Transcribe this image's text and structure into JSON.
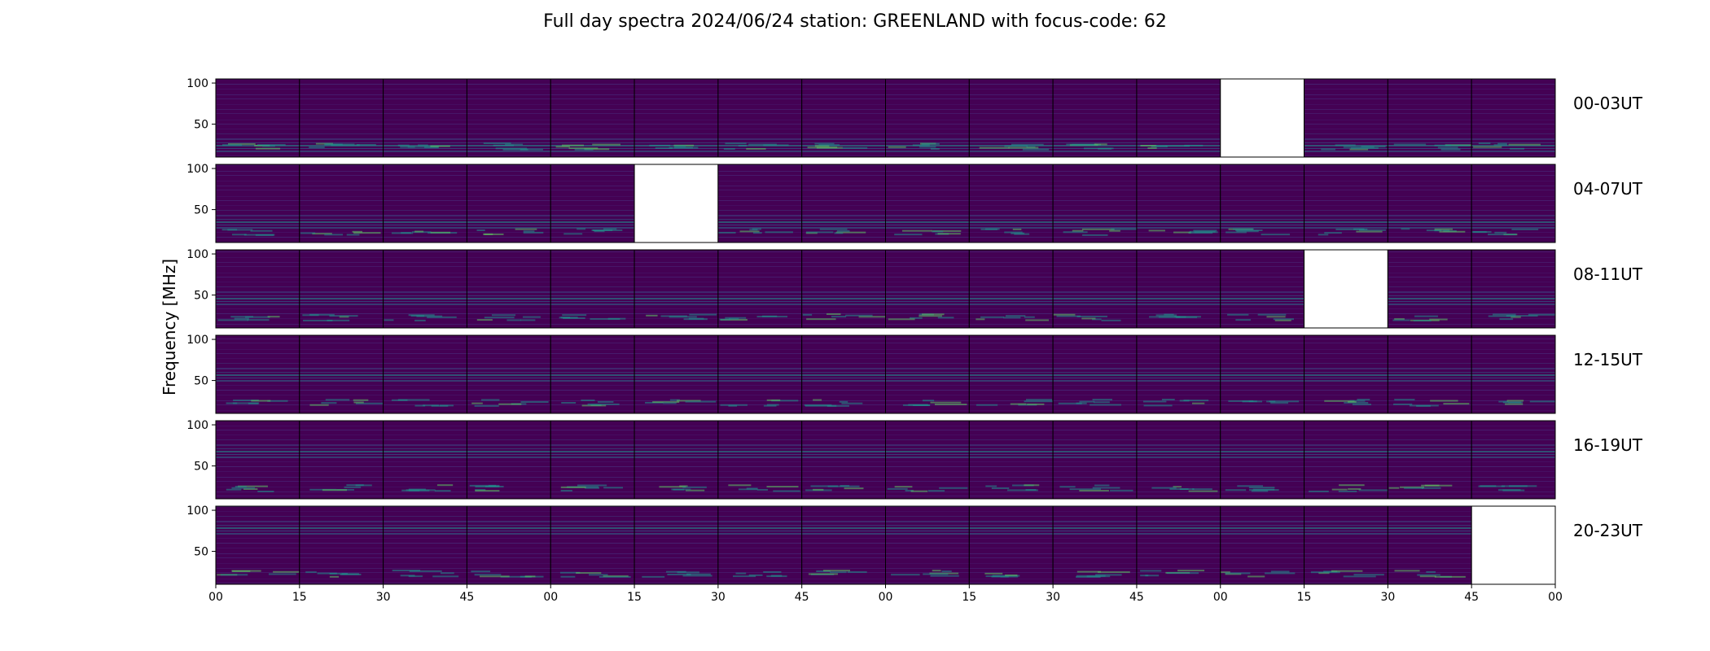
{
  "chart_data": {
    "type": "heatmap",
    "title": "Full day spectra 2024/06/24 station: GREENLAND with focus-code: 62",
    "ylabel": "Frequency [MHz]",
    "y_ticks": [
      50,
      100
    ],
    "ylim": [
      10,
      105
    ],
    "x_ticks": [
      "00",
      "15",
      "30",
      "45",
      "00",
      "15",
      "30",
      "45",
      "00",
      "15",
      "30",
      "45",
      "00",
      "15",
      "30",
      "45",
      "00"
    ],
    "colormap": "viridis",
    "rows": [
      {
        "label": "00-03UT",
        "panels": [
          1,
          1,
          1,
          1,
          1,
          1,
          1,
          1,
          1,
          1,
          1,
          1,
          0,
          1,
          1,
          1
        ]
      },
      {
        "label": "04-07UT",
        "panels": [
          1,
          1,
          1,
          1,
          1,
          0,
          1,
          1,
          1,
          1,
          1,
          1,
          1,
          1,
          1,
          1
        ]
      },
      {
        "label": "08-11UT",
        "panels": [
          1,
          1,
          1,
          1,
          1,
          1,
          1,
          1,
          1,
          1,
          1,
          1,
          1,
          0,
          1,
          1
        ]
      },
      {
        "label": "12-15UT",
        "panels": [
          1,
          1,
          1,
          1,
          1,
          1,
          1,
          1,
          1,
          1,
          1,
          1,
          1,
          1,
          1,
          1
        ]
      },
      {
        "label": "16-19UT",
        "panels": [
          1,
          1,
          1,
          1,
          1,
          1,
          1,
          1,
          1,
          1,
          1,
          1,
          1,
          1,
          1,
          1
        ]
      },
      {
        "label": "20-23UT",
        "panels": [
          1,
          1,
          1,
          1,
          1,
          1,
          1,
          1,
          1,
          1,
          1,
          1,
          1,
          1,
          1,
          0
        ]
      }
    ],
    "colors": {
      "background": "#440154",
      "band": "#3b528b",
      "signal": "#21918c",
      "strong": "#5ec962",
      "peak": "#fde725",
      "empty": "#ffffff"
    }
  }
}
